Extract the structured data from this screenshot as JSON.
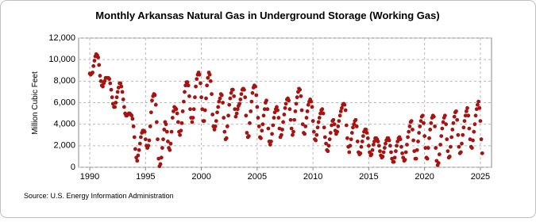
{
  "chart_data": {
    "type": "scatter",
    "title": "Monthly Arkansas Natural Gas in Underground Storage (Working Gas)",
    "y_label": "Million Cubic Feet",
    "source": "Source: U.S. Energy Information Administration",
    "color": "#a51410",
    "grid": true,
    "xlim": [
      1989,
      2026
    ],
    "ylim": [
      0,
      12000
    ],
    "xticks": [
      1990,
      1995,
      2000,
      2005,
      2010,
      2015,
      2020,
      2025
    ],
    "yticks": [
      0,
      {
        "value": 2000,
        "label": "2,000"
      },
      {
        "value": 4000,
        "label": "4,000"
      },
      {
        "value": 6000,
        "label": "6,000"
      },
      {
        "value": 8000,
        "label": "8,000"
      },
      {
        "value": 10000,
        "label": "10,000"
      },
      {
        "value": 12000,
        "label": "12,000"
      }
    ],
    "x": [
      1990,
      1990.08,
      1990.17,
      1990.25,
      1990.33,
      1990.42,
      1990.5,
      1990.58,
      1990.67,
      1990.75,
      1990.83,
      1990.92,
      1991,
      1991.08,
      1991.17,
      1991.25,
      1991.33,
      1991.42,
      1991.5,
      1991.58,
      1991.67,
      1991.75,
      1991.83,
      1991.92,
      1992,
      1992.08,
      1992.17,
      1992.25,
      1992.33,
      1992.42,
      1992.5,
      1992.58,
      1992.67,
      1992.75,
      1992.83,
      1992.92,
      1993,
      1993.08,
      1993.17,
      1993.25,
      1993.33,
      1993.42,
      1993.5,
      1993.58,
      1993.67,
      1993.75,
      1993.83,
      1993.92,
      1994,
      1994.08,
      1994.17,
      1994.25,
      1994.33,
      1994.42,
      1994.5,
      1994.58,
      1994.67,
      1994.75,
      1994.83,
      1994.92,
      1995,
      1995.08,
      1995.17,
      1995.25,
      1995.33,
      1995.42,
      1995.5,
      1995.58,
      1995.67,
      1995.75,
      1995.83,
      1995.92,
      1996,
      1996.08,
      1996.17,
      1996.25,
      1996.33,
      1996.42,
      1996.5,
      1996.58,
      1996.67,
      1996.75,
      1996.83,
      1996.92,
      1997,
      1997.08,
      1997.17,
      1997.25,
      1997.33,
      1997.42,
      1997.5,
      1997.58,
      1997.67,
      1997.75,
      1997.83,
      1997.92,
      1998,
      1998.08,
      1998.17,
      1998.25,
      1998.33,
      1998.42,
      1998.5,
      1998.58,
      1998.67,
      1998.75,
      1998.83,
      1998.92,
      1999,
      1999.08,
      1999.17,
      1999.25,
      1999.33,
      1999.42,
      1999.5,
      1999.58,
      1999.67,
      1999.75,
      1999.83,
      1999.92,
      2000,
      2000.08,
      2000.17,
      2000.25,
      2000.33,
      2000.42,
      2000.5,
      2000.58,
      2000.67,
      2000.75,
      2000.83,
      2000.92,
      2001,
      2001.08,
      2001.17,
      2001.25,
      2001.33,
      2001.42,
      2001.5,
      2001.58,
      2001.67,
      2001.75,
      2001.83,
      2001.92,
      2002,
      2002.08,
      2002.17,
      2002.25,
      2002.33,
      2002.42,
      2002.5,
      2002.58,
      2002.67,
      2002.75,
      2002.83,
      2002.92,
      2003,
      2003.08,
      2003.17,
      2003.25,
      2003.33,
      2003.42,
      2003.5,
      2003.58,
      2003.67,
      2003.75,
      2003.83,
      2003.92,
      2004,
      2004.08,
      2004.17,
      2004.25,
      2004.33,
      2004.42,
      2004.5,
      2004.58,
      2004.67,
      2004.75,
      2004.83,
      2004.92,
      2005,
      2005.08,
      2005.17,
      2005.25,
      2005.33,
      2005.42,
      2005.5,
      2005.58,
      2005.67,
      2005.75,
      2005.83,
      2005.92,
      2006,
      2006.08,
      2006.17,
      2006.25,
      2006.33,
      2006.42,
      2006.5,
      2006.58,
      2006.67,
      2006.75,
      2006.83,
      2006.92,
      2007,
      2007.08,
      2007.17,
      2007.25,
      2007.33,
      2007.42,
      2007.5,
      2007.58,
      2007.67,
      2007.75,
      2007.83,
      2007.92,
      2008,
      2008.08,
      2008.17,
      2008.25,
      2008.33,
      2008.42,
      2008.5,
      2008.58,
      2008.67,
      2008.75,
      2008.83,
      2008.92,
      2009,
      2009.08,
      2009.17,
      2009.25,
      2009.33,
      2009.42,
      2009.5,
      2009.58,
      2009.67,
      2009.75,
      2009.83,
      2009.92,
      2010,
      2010.08,
      2010.17,
      2010.25,
      2010.33,
      2010.42,
      2010.5,
      2010.58,
      2010.67,
      2010.75,
      2010.83,
      2010.92,
      2011,
      2011.08,
      2011.17,
      2011.25,
      2011.33,
      2011.42,
      2011.5,
      2011.58,
      2011.67,
      2011.75,
      2011.83,
      2011.92,
      2012,
      2012.08,
      2012.17,
      2012.25,
      2012.33,
      2012.42,
      2012.5,
      2012.58,
      2012.67,
      2012.75,
      2012.83,
      2012.92,
      2013,
      2013.08,
      2013.17,
      2013.25,
      2013.33,
      2013.42,
      2013.5,
      2013.58,
      2013.67,
      2013.75,
      2013.83,
      2013.92,
      2014,
      2014.08,
      2014.17,
      2014.25,
      2014.33,
      2014.42,
      2014.5,
      2014.58,
      2014.67,
      2014.75,
      2014.83,
      2014.92,
      2015,
      2015.08,
      2015.17,
      2015.25,
      2015.33,
      2015.42,
      2015.5,
      2015.58,
      2015.67,
      2015.75,
      2015.83,
      2015.92,
      2016,
      2016.08,
      2016.17,
      2016.25,
      2016.33,
      2016.42,
      2016.5,
      2016.58,
      2016.67,
      2016.75,
      2016.83,
      2016.92,
      2017,
      2017.08,
      2017.17,
      2017.25,
      2017.33,
      2017.42,
      2017.5,
      2017.58,
      2017.67,
      2017.75,
      2017.83,
      2017.92,
      2018,
      2018.08,
      2018.17,
      2018.25,
      2018.33,
      2018.42,
      2018.5,
      2018.58,
      2018.67,
      2018.75,
      2018.83,
      2018.92,
      2019,
      2019.08,
      2019.17,
      2019.25,
      2019.33,
      2019.42,
      2019.5,
      2019.58,
      2019.67,
      2019.75,
      2019.83,
      2019.92,
      2020,
      2020.08,
      2020.17,
      2020.25,
      2020.33,
      2020.42,
      2020.5,
      2020.58,
      2020.67,
      2020.75,
      2020.83,
      2020.92,
      2021,
      2021.08,
      2021.17,
      2021.25,
      2021.33,
      2021.42,
      2021.5,
      2021.58,
      2021.67,
      2021.75,
      2021.83,
      2021.92,
      2022,
      2022.08,
      2022.17,
      2022.25,
      2022.33,
      2022.42,
      2022.5,
      2022.58,
      2022.67,
      2022.75,
      2022.83,
      2022.92,
      2023,
      2023.08,
      2023.17,
      2023.25,
      2023.33,
      2023.42,
      2023.5,
      2023.58,
      2023.67,
      2023.75,
      2023.83,
      2023.92,
      2024,
      2024.08,
      2024.17,
      2024.25,
      2024.33,
      2024.42,
      2024.5,
      2024.58,
      2024.67,
      2024.75,
      2024.83,
      2024.92,
      2025,
      2025.08,
      2025.17
    ],
    "values": [
      8700,
      8600,
      8700,
      8800,
      9400,
      9900,
      10300,
      10500,
      10400,
      10200,
      9500,
      8500,
      8000,
      7600,
      7500,
      7800,
      8000,
      8300,
      8300,
      8300,
      8300,
      8200,
      7800,
      7200,
      6500,
      5900,
      5600,
      5600,
      6000,
      6500,
      7000,
      7400,
      7800,
      7800,
      7500,
      7000,
      6300,
      5600,
      5000,
      4800,
      4800,
      4900,
      5000,
      5000,
      4900,
      4800,
      4500,
      3800,
      2800,
      1700,
      900,
      600,
      1100,
      1600,
      2200,
      2800,
      3200,
      3400,
      3400,
      3300,
      2600,
      2000,
      1800,
      2000,
      2500,
      3800,
      5100,
      6200,
      6600,
      6800,
      6700,
      5800,
      4200,
      2600,
      800,
      100,
      300,
      900,
      1800,
      2600,
      3500,
      4200,
      4000,
      3300,
      2400,
      1800,
      1600,
      2200,
      3300,
      4600,
      5200,
      5600,
      5500,
      5400,
      5000,
      4200,
      3300,
      3000,
      3400,
      4100,
      5200,
      6100,
      7000,
      7600,
      7900,
      7900,
      7600,
      6600,
      5400,
      4600,
      4200,
      4600,
      5400,
      6500,
      7500,
      8200,
      8600,
      8800,
      8600,
      7800,
      6500,
      5400,
      4300,
      4300,
      5300,
      6400,
      7600,
      8300,
      8800,
      8600,
      8000,
      6800,
      4900,
      3800,
      3500,
      3800,
      4300,
      5100,
      5600,
      6100,
      6400,
      6800,
      6700,
      6000,
      4600,
      3300,
      2600,
      2700,
      3800,
      4800,
      5800,
      6400,
      6900,
      7200,
      7200,
      6600,
      5400,
      4700,
      5000,
      5400,
      5700,
      5900,
      6300,
      6800,
      7200,
      7300,
      7200,
      6500,
      4800,
      3200,
      2800,
      2900,
      4100,
      5200,
      6100,
      6900,
      7400,
      7600,
      7500,
      6700,
      5600,
      4600,
      3800,
      2800,
      2700,
      3400,
      4000,
      4800,
      5400,
      6000,
      6200,
      5400,
      3600,
      2400,
      2100,
      2400,
      3100,
      3900,
      4600,
      5100,
      5400,
      5600,
      5300,
      4600,
      3600,
      2800,
      3000,
      3500,
      4200,
      4900,
      5500,
      5900,
      6300,
      6400,
      6200,
      5400,
      4400,
      3600,
      3000,
      3300,
      4400,
      5200,
      5900,
      6500,
      7000,
      7300,
      7200,
      6600,
      5300,
      4000,
      3200,
      3100,
      3800,
      4600,
      5200,
      5800,
      6100,
      6300,
      6100,
      5600,
      4300,
      3300,
      2600,
      2500,
      3000,
      3700,
      4200,
      4600,
      5000,
      5300,
      5400,
      5000,
      3700,
      2800,
      2200,
      1600,
      1500,
      2000,
      2600,
      3200,
      3900,
      4300,
      4400,
      4000,
      3400,
      3100,
      3300,
      3800,
      4300,
      4800,
      5200,
      5500,
      5800,
      5900,
      5800,
      5300,
      3900,
      2700,
      1900,
      1400,
      2000,
      2600,
      3200,
      3700,
      4000,
      4300,
      4400,
      3800,
      2400,
      1400,
      1200,
      1300,
      1900,
      2400,
      2900,
      3300,
      3500,
      3500,
      3200,
      2700,
      2000,
      1400,
      1100,
      1200,
      1600,
      2100,
      2400,
      2700,
      2700,
      2600,
      2400,
      2000,
      1500,
      1100,
      900,
      1000,
      1400,
      1800,
      2200,
      2500,
      2700,
      2700,
      2500,
      2000,
      1400,
      800,
      500,
      500,
      900,
      1500,
      2000,
      2400,
      2700,
      2800,
      2600,
      1900,
      1300,
      900,
      600,
      700,
      1400,
      2100,
      2800,
      3300,
      3800,
      4200,
      4300,
      3500,
      2500,
      1500,
      800,
      800,
      1600,
      2400,
      3200,
      3800,
      4300,
      4700,
      4800,
      4100,
      2900,
      1800,
      900,
      800,
      1800,
      2700,
      3500,
      4100,
      4600,
      4800,
      4700,
      3800,
      1800,
      600,
      200,
      400,
      1200,
      2100,
      2900,
      3600,
      4200,
      4600,
      4800,
      4000,
      2600,
      1500,
      900,
      1000,
      1900,
      2800,
      3500,
      4100,
      4700,
      5100,
      5200,
      4400,
      3000,
      1900,
      1300,
      1400,
      2200,
      3000,
      3700,
      4300,
      4800,
      5200,
      5500,
      4800,
      3600,
      2600,
      1900,
      1800,
      2500,
      3300,
      4000,
      4800,
      5400,
      5800,
      6100,
      5500,
      4300,
      2600,
      1300
    ]
  }
}
